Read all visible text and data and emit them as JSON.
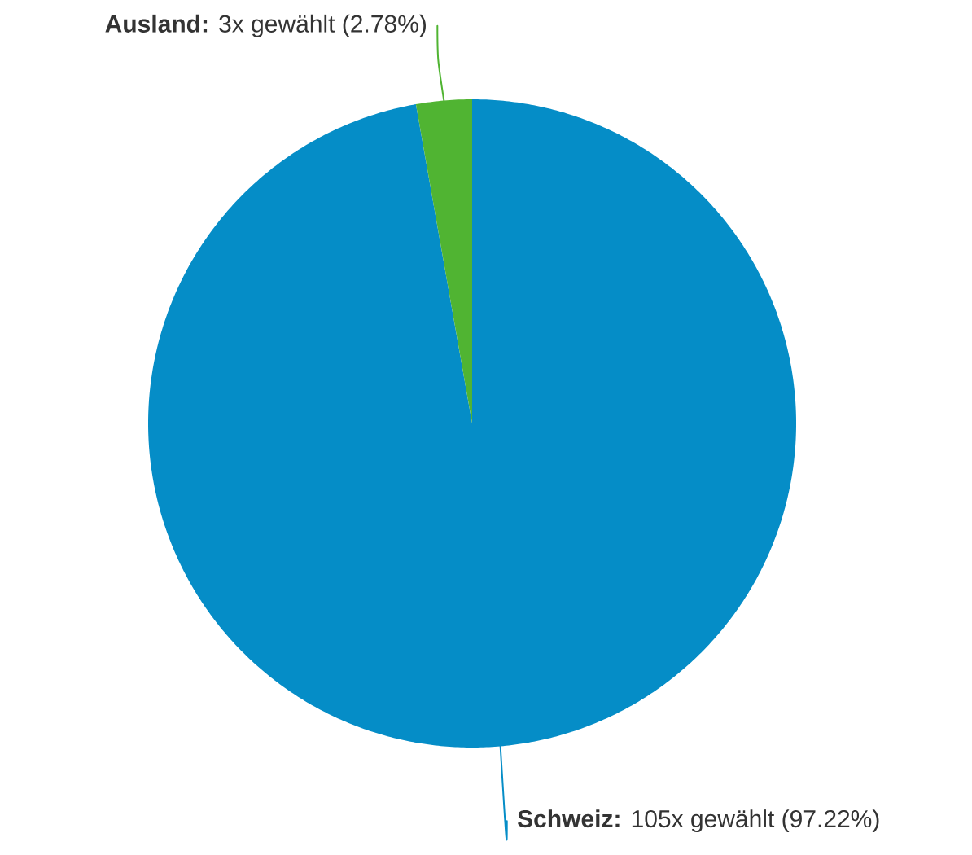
{
  "chart_data": {
    "type": "pie",
    "categories": [
      "Schweiz",
      "Ausland"
    ],
    "values": [
      105,
      3
    ],
    "colors": [
      "#058dc7",
      "#50b432"
    ],
    "value_labels": [
      "**:** 105x gewählt (97.22%)",
      "**:** 3x gewählt (2.78%)"
    ]
  }
}
